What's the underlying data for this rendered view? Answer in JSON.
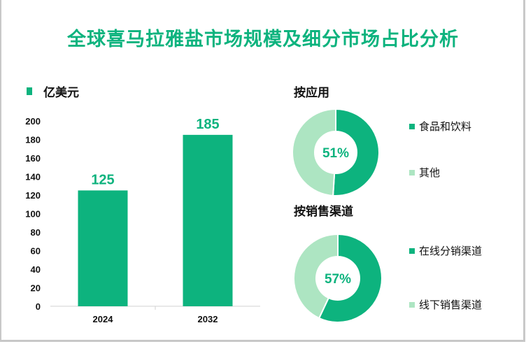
{
  "title": "全球喜马拉雅盐市场规模及细分市场占比分析",
  "colors": {
    "primary": "#0db37e",
    "secondary": "#ade5c2"
  },
  "bar_legend": "亿美元",
  "chart_data": [
    {
      "type": "bar",
      "title": "",
      "ylabel": "亿美元",
      "categories": [
        "2024",
        "2032"
      ],
      "values": [
        125,
        185
      ],
      "data_labels": [
        "125",
        "185"
      ],
      "ylim": [
        0,
        200
      ],
      "yticks": [
        "0",
        "20",
        "40",
        "60",
        "80",
        "100",
        "120",
        "140",
        "160",
        "180",
        "200"
      ]
    },
    {
      "type": "pie",
      "title": "按应用",
      "labels": [
        "食品和饮料",
        "其他"
      ],
      "values": [
        51,
        49
      ],
      "center_label": "51%"
    },
    {
      "type": "pie",
      "title": "按销售渠道",
      "labels": [
        "在线分销渠道",
        "线下销售渠道"
      ],
      "values": [
        57,
        43
      ],
      "center_label": "57%"
    }
  ]
}
